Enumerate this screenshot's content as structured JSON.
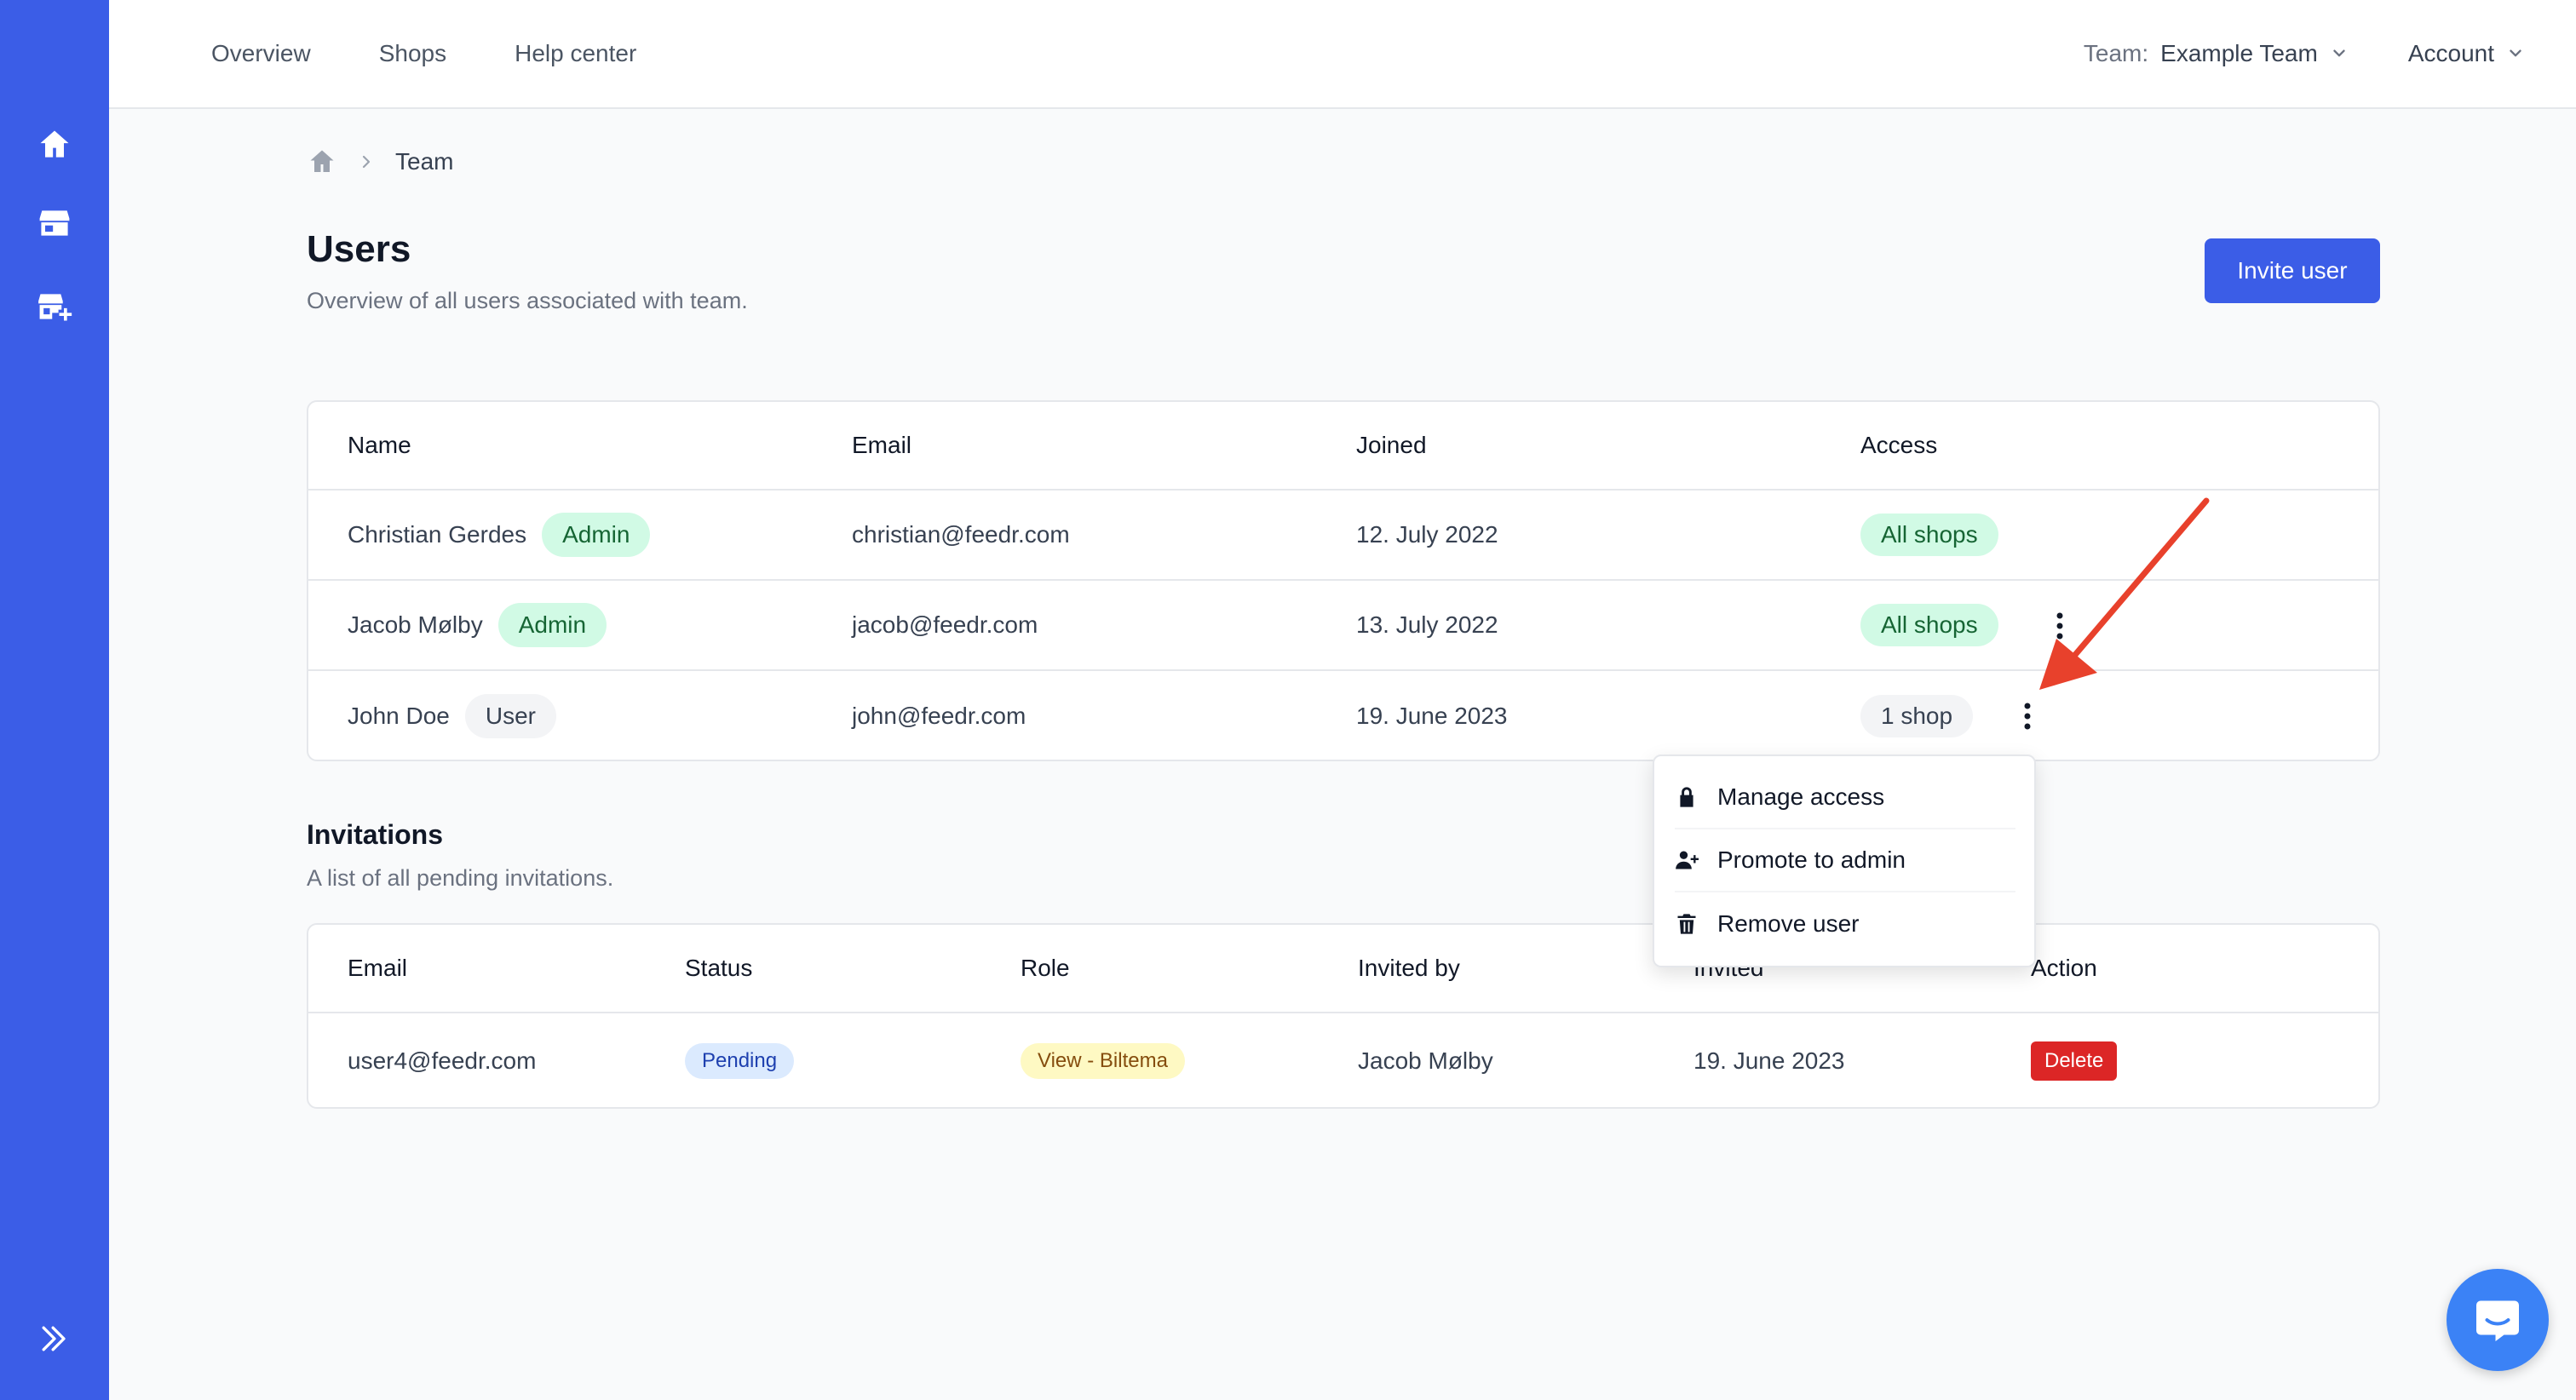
{
  "sidebar": {
    "icons": [
      "home-icon",
      "shop-icon",
      "add-shop-icon",
      "expand-icon"
    ]
  },
  "topnav": {
    "items": [
      "Overview",
      "Shops",
      "Help center"
    ],
    "team_label": "Team:",
    "team_value": "Example Team",
    "account_label": "Account"
  },
  "breadcrumb": {
    "current": "Team"
  },
  "users": {
    "title": "Users",
    "subtitle": "Overview of all users associated with team.",
    "invite_label": "Invite user",
    "columns": [
      "Name",
      "Email",
      "Joined",
      "Access"
    ],
    "rows": [
      {
        "name": "Christian Gerdes",
        "role": "Admin",
        "email": "christian@feedr.com",
        "joined": "12. July 2022",
        "access": "All shops"
      },
      {
        "name": "Jacob Mølby",
        "role": "Admin",
        "email": "jacob@feedr.com",
        "joined": "13. July 2022",
        "access": "All shops"
      },
      {
        "name": "John Doe",
        "role": "User",
        "email": "john@feedr.com",
        "joined": "19. June 2023",
        "access": "1 shop"
      }
    ]
  },
  "menu": {
    "items": [
      "Manage access",
      "Promote to admin",
      "Remove user"
    ]
  },
  "invitations": {
    "title": "Invitations",
    "subtitle": "A list of all pending invitations.",
    "columns": [
      "Email",
      "Status",
      "Role",
      "Invited by",
      "Invited",
      "Action"
    ],
    "rows": [
      {
        "email": "user4@feedr.com",
        "status": "Pending",
        "role": "View - Biltema",
        "invited_by": "Jacob Mølby",
        "invited": "19. June 2023",
        "action": "Delete"
      }
    ]
  },
  "colors": {
    "accent": "#3b5de7",
    "admin_badge": "#d1fae5",
    "delete": "#dc2626",
    "pending": "#dbeafe",
    "role": "#fef9c3",
    "arrow": "#e8412c"
  }
}
